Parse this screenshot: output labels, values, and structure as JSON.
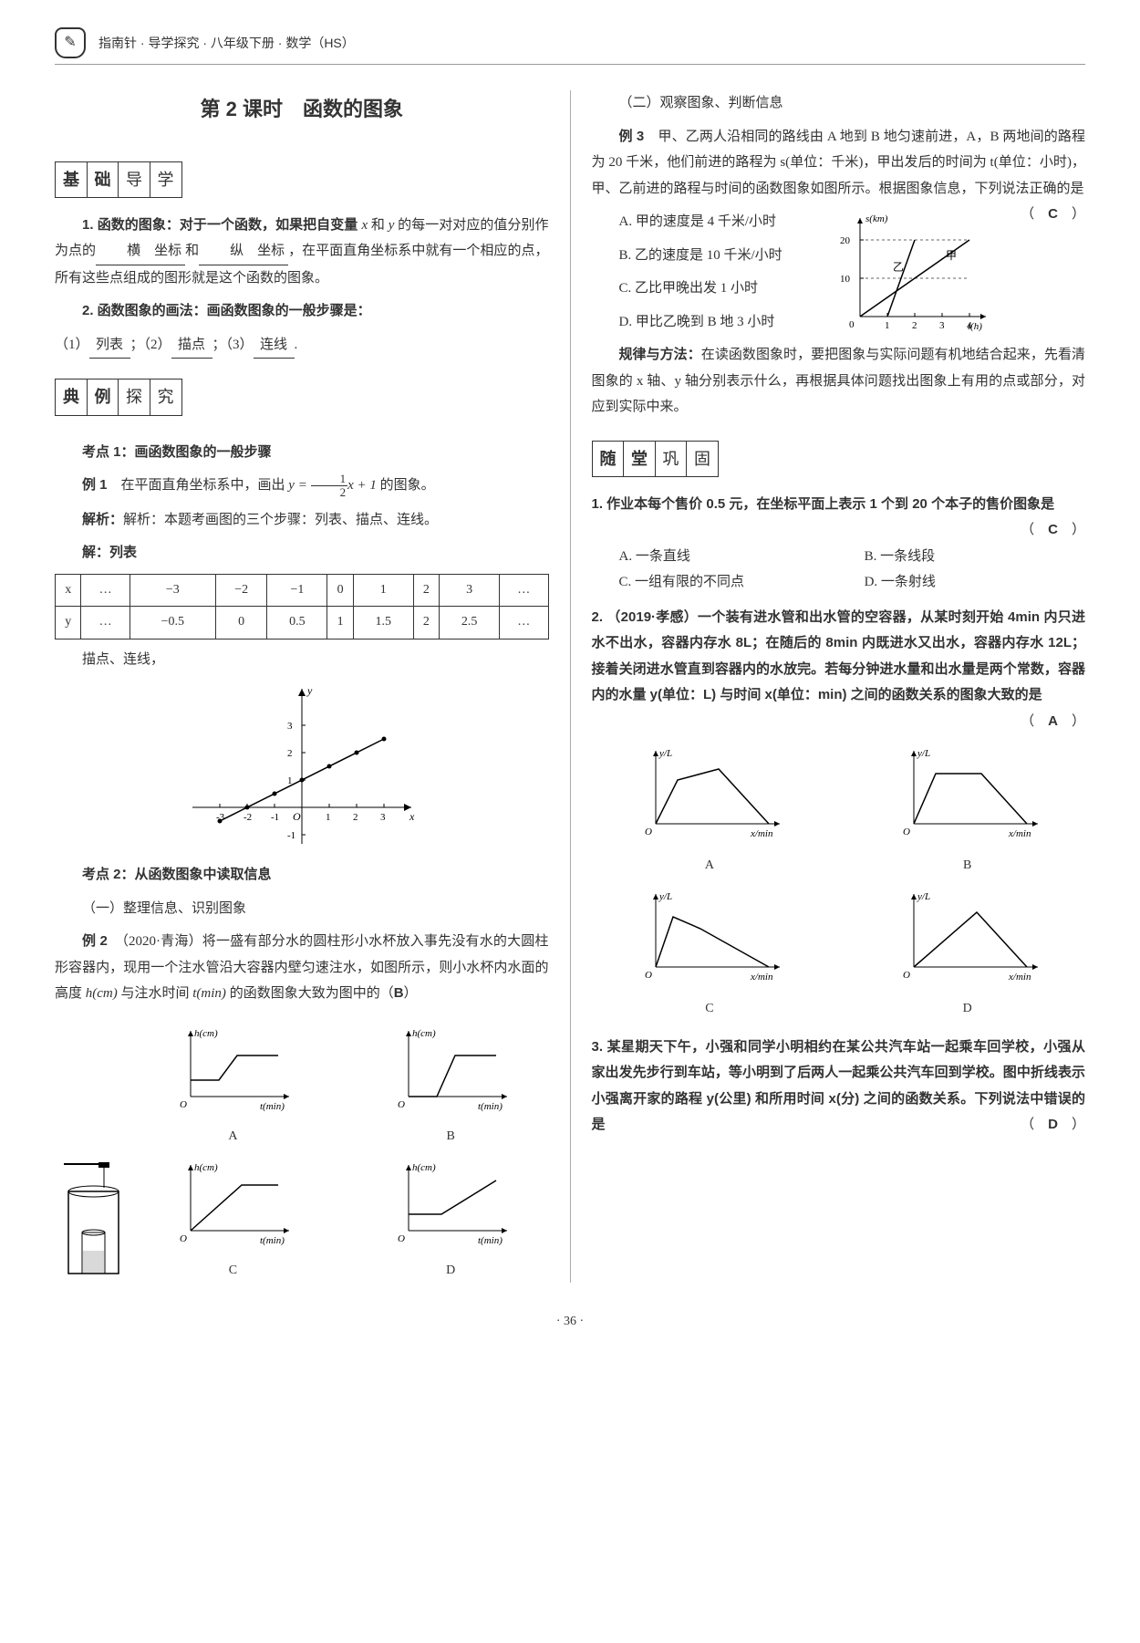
{
  "header": {
    "text": "指南针 · 导学探究 · 八年级下册 · 数学（HS）"
  },
  "lesson_title": "第 2 课时　函数的图象",
  "sections": {
    "jichu": [
      "基",
      "础",
      "导",
      "学"
    ],
    "dianli": [
      "典",
      "例",
      "探",
      "究"
    ],
    "suitang": [
      "随",
      "堂",
      "巩",
      "固"
    ]
  },
  "jichu": {
    "p1_a": "1. 函数的图象：对于一个函数，如果把自变量 ",
    "p1_x": "x",
    "p1_b": " 和 ",
    "p1_y": "y",
    "p1_c": " 的每一对对应的值分别作为点的",
    "blank1": "横　坐标",
    "p1_d": "和",
    "blank2": "纵　坐标",
    "p1_e": "，在平面直角坐标系中就有一个相应的点，所有这些点组成的图形就是这个函数的图象。",
    "p2_a": "2. 函数图象的画法：画函数图象的一般步骤是：",
    "p2_b": "（1）",
    "blank3": "列表",
    "p2_c": "；（2）",
    "blank4": "描点",
    "p2_d": "；（3）",
    "blank5": "连线",
    "p2_e": "."
  },
  "kaodian1": {
    "title": "考点 1：画函数图象的一般步骤",
    "ex1_label": "例 1",
    "ex1_a": "　在平面直角坐标系中，画出 ",
    "ex1_eq_pre": "y = ",
    "ex1_frac_t": "1",
    "ex1_frac_b": "2",
    "ex1_eq_post": "x + 1",
    "ex1_b": " 的图象。",
    "jiexi": "解析：本题考画图的三个步骤：列表、描点、连线。",
    "jie": "解：列表",
    "table": {
      "row1": [
        "x",
        "…",
        "−3",
        "−2",
        "−1",
        "0",
        "1",
        "2",
        "3",
        "…"
      ],
      "row2": [
        "y",
        "…",
        "−0.5",
        "0",
        "0.5",
        "1",
        "1.5",
        "2",
        "2.5",
        "…"
      ]
    },
    "after": "描点、连线，",
    "chart": {
      "xmin": -3,
      "xmax": 3,
      "ymin": -1,
      "ymax": 3,
      "points": [
        [
          -3,
          -0.5
        ],
        [
          -2,
          0
        ],
        [
          -1,
          0.5
        ],
        [
          0,
          1
        ],
        [
          1,
          1.5
        ],
        [
          2,
          2
        ],
        [
          3,
          2.5
        ]
      ],
      "color_axis": "#000",
      "color_line": "#000"
    }
  },
  "kaodian2": {
    "title": "考点 2：从函数图象中读取信息",
    "sub1": "（一）整理信息、识别图象",
    "ex2_label": "例 2",
    "ex2_a": "（2020·青海）将一盛有部分水的圆柱形小水杯放入事先没有水的大圆柱形容器内，现用一个注水管沿大容器内壁匀速注水，如图所示，则小水杯内水面的高度 ",
    "ex2_h": "h(cm)",
    "ex2_b": " 与注水时间 ",
    "ex2_t": "t(min)",
    "ex2_c": " 的函数图象大致为图中的（",
    "ex2_ans": "B",
    "ex2_d": "）",
    "labels": {
      "A": "A",
      "B": "B",
      "C": "C",
      "D": "D",
      "yl": "h(cm)",
      "xl": "t(min)"
    }
  },
  "right": {
    "sub2": "（二）观察图象、判断信息",
    "ex3_label": "例 3",
    "ex3_a": "甲、乙两人沿相同的路线由 A 地到 B 地匀速前进，A，B 两地间的路程为 20 千米，他们前进的路程为 s(单位：千米)，甲出发后的时间为 t(单位：小时)，甲、乙前进的路程与时间的函数图象如图所示。根据图象信息，下列说法正确的是",
    "ex3_ans": "C",
    "ex3_opts": {
      "A": "A. 甲的速度是 4 千米/小时",
      "B": "B. 乙的速度是 10 千米/小时",
      "C": "C. 乙比甲晚出发 1 小时",
      "D": "D. 甲比乙晚到 B 地 3 小时"
    },
    "ex3_chart": {
      "xticks": [
        0,
        1,
        2,
        3,
        4
      ],
      "yticks": [
        10,
        20
      ],
      "jia": [
        [
          0,
          0
        ],
        [
          4,
          20
        ]
      ],
      "yi": [
        [
          1,
          0
        ],
        [
          2,
          20
        ]
      ],
      "label_jia": "甲",
      "label_yi": "乙",
      "yl": "s(km)",
      "xl": "t(h)"
    },
    "guilu_label": "规律与方法：",
    "guilu": "在读函数图象时，要把图象与实际问题有机地结合起来，先看清图象的 x 轴、y 轴分别表示什么，再根据具体问题找出图象上有用的点或部分，对应到实际中来。"
  },
  "suitang": {
    "q1_a": "1. 作业本每个售价 0.5 元，在坐标平面上表示 1 个到 20 个本子的售价图象是",
    "q1_ans": "C",
    "q1_opts": {
      "A": "A. 一条直线",
      "B": "B. 一条线段",
      "C": "C. 一组有限的不同点",
      "D": "D. 一条射线"
    },
    "q2_a": "2. （2019·孝感）一个装有进水管和出水管的空容器，从某时刻开始 4min 内只进水不出水，容器内存水 8L；在随后的 8min 内既进水又出水，容器内存水 12L；接着关闭进水管直到容器内的水放完。若每分钟进水量和出水量是两个常数，容器内的水量 y(单位：L) 与时间 x(单位：min) 之间的函数关系的图象大致的是",
    "q2_ans": "A",
    "q2_labels": {
      "yl": "y/L",
      "xl": "x/min",
      "A": "A",
      "B": "B",
      "C": "C",
      "D": "D"
    },
    "q3_a": "3. 某星期天下午，小强和同学小明相约在某公共汽车站一起乘车回学校，小强从家出发先步行到车站，等小明到了后两人一起乘公共汽车回到学校。图中折线表示小强离开家的路程 y(公里) 和所用时间 x(分) 之间的函数关系。下列说法中错误的是",
    "q3_ans": "D"
  },
  "page_num": "· 36 ·"
}
